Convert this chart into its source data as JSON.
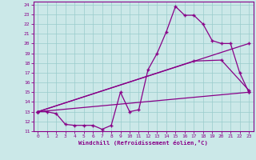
{
  "xlabel": "Windchill (Refroidissement éolien,°C)",
  "background_color": "#cbe8e8",
  "line_color": "#880088",
  "grid_color": "#99cccc",
  "xlim": [
    -0.5,
    23.5
  ],
  "ylim": [
    11,
    24.3
  ],
  "yticks": [
    11,
    12,
    13,
    14,
    15,
    16,
    17,
    18,
    19,
    20,
    21,
    22,
    23,
    24
  ],
  "xticks": [
    0,
    1,
    2,
    3,
    4,
    5,
    6,
    7,
    8,
    9,
    10,
    11,
    12,
    13,
    14,
    15,
    16,
    17,
    18,
    19,
    20,
    21,
    22,
    23
  ],
  "series1": [
    [
      0,
      13.0
    ],
    [
      1,
      13.0
    ],
    [
      2,
      12.8
    ],
    [
      3,
      11.7
    ],
    [
      4,
      11.6
    ],
    [
      5,
      11.6
    ],
    [
      6,
      11.6
    ],
    [
      7,
      11.2
    ],
    [
      8,
      11.6
    ],
    [
      9,
      15.0
    ],
    [
      10,
      13.0
    ],
    [
      11,
      13.2
    ],
    [
      12,
      17.3
    ],
    [
      13,
      19.0
    ],
    [
      14,
      21.2
    ],
    [
      15,
      23.8
    ],
    [
      16,
      22.9
    ],
    [
      17,
      22.9
    ],
    [
      18,
      22.0
    ],
    [
      19,
      20.3
    ],
    [
      20,
      20.0
    ],
    [
      21,
      20.0
    ],
    [
      22,
      17.0
    ],
    [
      23,
      15.0
    ]
  ],
  "series2": [
    [
      0,
      13.0
    ],
    [
      23,
      20.0
    ]
  ],
  "series3": [
    [
      0,
      13.0
    ],
    [
      17,
      18.2
    ],
    [
      20,
      18.3
    ],
    [
      23,
      15.2
    ]
  ],
  "series4": [
    [
      0,
      13.0
    ],
    [
      23,
      15.0
    ]
  ]
}
